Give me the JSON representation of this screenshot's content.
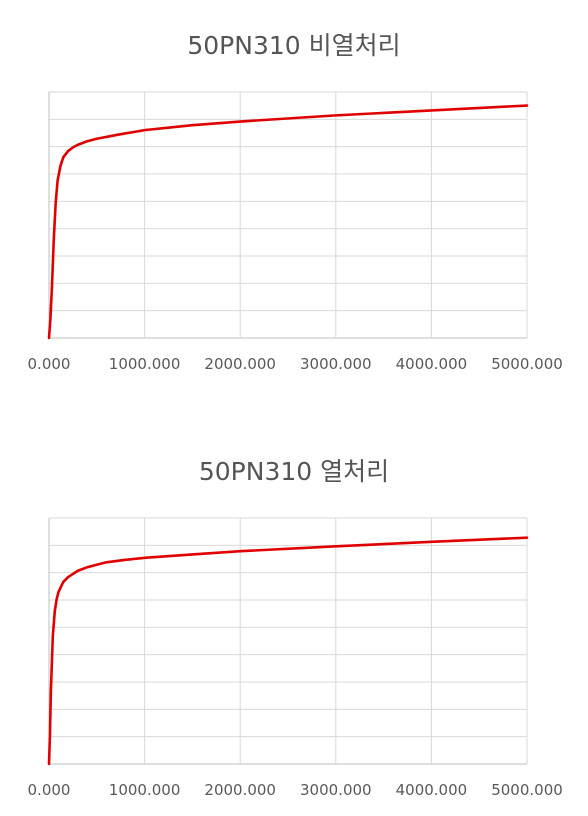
{
  "chart_data": [
    {
      "type": "line",
      "title": "50PN310 비열처리",
      "x_tick_labels": [
        "0.000",
        "1000.000",
        "2000.000",
        "3000.000",
        "4000.000",
        "5000.000"
      ],
      "xlim": [
        0,
        5000
      ],
      "ylim": [
        0,
        100
      ],
      "y_gridlines": 9,
      "grid": true,
      "y_tick_labels": false,
      "legend": "none",
      "line_color": "#e00000",
      "series": [
        {
          "x": [
            0,
            15,
            30,
            50,
            70,
            90,
            120,
            150,
            200,
            250,
            300,
            400,
            500,
            700,
            1000,
            1500,
            2000,
            3000,
            4000,
            5000
          ],
          "y": [
            0,
            8,
            20,
            40,
            55,
            64,
            70,
            73.5,
            76,
            77.5,
            78.5,
            80,
            81,
            82.5,
            84.5,
            86.5,
            88,
            90.5,
            92.5,
            94.5
          ]
        }
      ]
    },
    {
      "type": "line",
      "title": "50PN310 열처리",
      "x_tick_labels": [
        "0.000",
        "1000.000",
        "2000.000",
        "3000.000",
        "4000.000",
        "5000.000"
      ],
      "xlim": [
        0,
        5000
      ],
      "ylim": [
        0,
        100
      ],
      "y_gridlines": 9,
      "grid": true,
      "y_tick_labels": false,
      "legend": "none",
      "line_color": "#e00000",
      "series": [
        {
          "x": [
            0,
            10,
            20,
            40,
            60,
            80,
            100,
            150,
            200,
            300,
            400,
            600,
            800,
            1000,
            1500,
            2000,
            3000,
            4000,
            5000
          ],
          "y": [
            0,
            12,
            30,
            52,
            62,
            67,
            70,
            74,
            76,
            78.5,
            80,
            82,
            83,
            83.8,
            85.2,
            86.5,
            88.5,
            90.3,
            92
          ]
        }
      ]
    }
  ]
}
